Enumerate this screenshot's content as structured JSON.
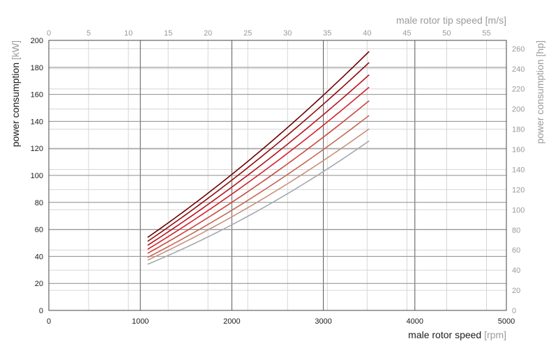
{
  "chart_data": {
    "type": "line",
    "x_axis": {
      "label": "male rotor speed",
      "unit": "[rpm]",
      "range": [
        0,
        5000
      ],
      "ticks": [
        0,
        1000,
        2000,
        3000,
        4000,
        5000
      ]
    },
    "x2_axis": {
      "label": "male rotor tip speed",
      "unit": "[m/s]",
      "range": [
        0,
        57.5
      ],
      "ticks": [
        0,
        5,
        10,
        15,
        20,
        25,
        30,
        35,
        40,
        45,
        50,
        55
      ]
    },
    "y_axis": {
      "label": "power consumption",
      "unit": "[kW]",
      "range": [
        0,
        200
      ],
      "ticks": [
        0,
        20,
        40,
        60,
        80,
        100,
        120,
        140,
        160,
        180,
        200
      ]
    },
    "y2_axis": {
      "label": "power consumption",
      "unit": "[hp]",
      "range": [
        0,
        268.2
      ],
      "ticks": [
        0,
        20,
        40,
        60,
        80,
        100,
        120,
        140,
        160,
        180,
        200,
        220,
        240,
        260
      ]
    },
    "grid": true,
    "series": [
      {
        "color": "#6b0000",
        "points": [
          [
            1080,
            54
          ],
          [
            2000,
            101
          ],
          [
            3000,
            159
          ],
          [
            3500,
            192
          ]
        ]
      },
      {
        "color": "#8f0a0a",
        "points": [
          [
            1080,
            51
          ],
          [
            2000,
            97
          ],
          [
            3000,
            152
          ],
          [
            3500,
            184
          ]
        ]
      },
      {
        "color": "#b5121b",
        "points": [
          [
            1080,
            48
          ],
          [
            2000,
            92
          ],
          [
            3000,
            144
          ],
          [
            3500,
            175
          ]
        ]
      },
      {
        "color": "#d4202a",
        "points": [
          [
            1080,
            45
          ],
          [
            2000,
            87
          ],
          [
            3000,
            136
          ],
          [
            3500,
            166
          ]
        ]
      },
      {
        "color": "#c9463a",
        "points": [
          [
            1080,
            42
          ],
          [
            2000,
            81
          ],
          [
            3000,
            127
          ],
          [
            3500,
            156
          ]
        ]
      },
      {
        "color": "#c26a55",
        "points": [
          [
            1080,
            39
          ],
          [
            2000,
            75
          ],
          [
            3000,
            118
          ],
          [
            3500,
            145
          ]
        ]
      },
      {
        "color": "#c7917c",
        "points": [
          [
            1080,
            37
          ],
          [
            2000,
            70
          ],
          [
            3000,
            110
          ],
          [
            3500,
            135
          ]
        ]
      },
      {
        "color": "#a3a8b0",
        "points": [
          [
            1080,
            34
          ],
          [
            2000,
            64
          ],
          [
            3000,
            102
          ],
          [
            3500,
            126
          ]
        ]
      }
    ]
  }
}
